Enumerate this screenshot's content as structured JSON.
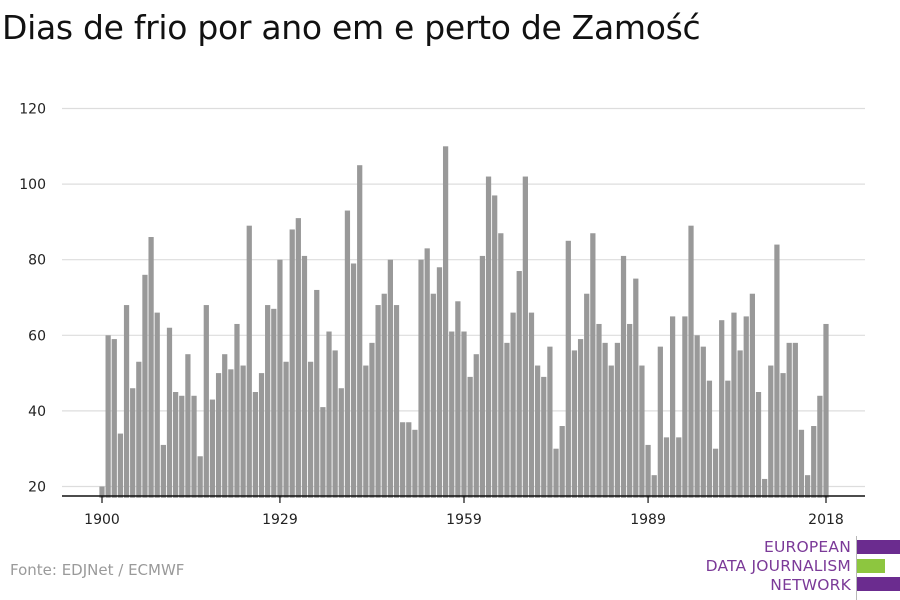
{
  "title": "Dias de frio por ano em e perto de Zamość",
  "source": "Fonte: EDJNet / ECMWF",
  "logo": {
    "lines": [
      "EUROPEAN",
      "DATA JOURNALISM",
      "NETWORK"
    ],
    "colors": {
      "purple": "#6b2c8f",
      "green": "#8dc63f"
    }
  },
  "colors": {
    "bar": "#999999",
    "grid": "#dddddd",
    "axis": "#111111"
  },
  "chart_data": {
    "type": "bar",
    "title": "Dias de frio por ano em e perto de Zamość",
    "xlabel": "",
    "ylabel": "",
    "x_ticks": [
      1900,
      1929,
      1959,
      1989,
      2018
    ],
    "y_ticks": [
      20,
      40,
      60,
      80,
      100,
      120
    ],
    "ylim": [
      17,
      120
    ],
    "xlim": [
      1899,
      2020
    ],
    "grid": true,
    "x": [
      1900,
      1901,
      1902,
      1903,
      1904,
      1905,
      1906,
      1907,
      1908,
      1909,
      1910,
      1911,
      1912,
      1913,
      1914,
      1915,
      1916,
      1917,
      1918,
      1919,
      1920,
      1921,
      1922,
      1923,
      1924,
      1925,
      1926,
      1927,
      1928,
      1929,
      1930,
      1931,
      1932,
      1933,
      1934,
      1935,
      1936,
      1937,
      1938,
      1939,
      1940,
      1941,
      1942,
      1943,
      1944,
      1945,
      1946,
      1947,
      1948,
      1949,
      1950,
      1951,
      1952,
      1953,
      1954,
      1955,
      1956,
      1957,
      1958,
      1959,
      1960,
      1961,
      1962,
      1963,
      1964,
      1965,
      1966,
      1967,
      1968,
      1969,
      1970,
      1971,
      1972,
      1973,
      1974,
      1975,
      1976,
      1977,
      1978,
      1979,
      1980,
      1981,
      1982,
      1983,
      1984,
      1985,
      1986,
      1987,
      1988,
      1989,
      1990,
      1991,
      1992,
      1993,
      1994,
      1995,
      1996,
      1997,
      1998,
      1999,
      2000,
      2001,
      2002,
      2003,
      2004,
      2005,
      2006,
      2007,
      2008,
      2009,
      2010,
      2011,
      2012,
      2013,
      2014,
      2015,
      2016,
      2017,
      2018
    ],
    "values": [
      20,
      60,
      59,
      34,
      68,
      46,
      53,
      76,
      86,
      66,
      31,
      62,
      45,
      44,
      55,
      44,
      28,
      68,
      43,
      50,
      55,
      51,
      63,
      52,
      89,
      45,
      50,
      68,
      67,
      80,
      53,
      88,
      91,
      81,
      53,
      72,
      41,
      61,
      56,
      46,
      93,
      79,
      105,
      52,
      58,
      68,
      71,
      80,
      68,
      37,
      37,
      35,
      80,
      83,
      71,
      78,
      110,
      61,
      69,
      61,
      49,
      55,
      81,
      102,
      97,
      87,
      58,
      66,
      77,
      102,
      66,
      52,
      49,
      57,
      30,
      36,
      85,
      56,
      59,
      71,
      87,
      63,
      58,
      52,
      58,
      81,
      63,
      75,
      52,
      31,
      23,
      57,
      33,
      65,
      33,
      65,
      89,
      60,
      57,
      48,
      30,
      64,
      48,
      66,
      56,
      65,
      71,
      45,
      22,
      52,
      84,
      50,
      58,
      58,
      35,
      23,
      36,
      44,
      63
    ]
  }
}
